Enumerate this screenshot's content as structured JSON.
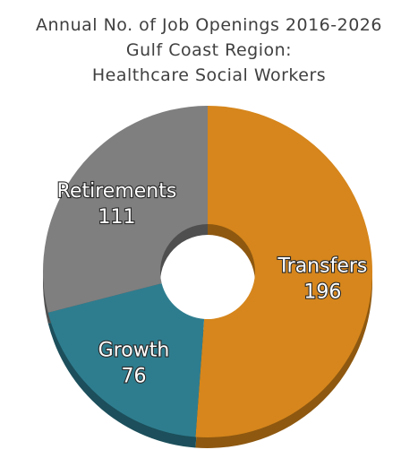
{
  "chart_data": {
    "type": "pie",
    "title_lines": [
      "Annual No. of Job Openings 2016-2026",
      "Gulf Coast Region:",
      "Healthcare Social Workers"
    ],
    "categories": [
      "Transfers",
      "Growth",
      "Retirements"
    ],
    "values": [
      196,
      76,
      111
    ],
    "colors": [
      "#D6861C",
      "#2E7D8F",
      "#7F7F7F"
    ],
    "side_colors": [
      "#8E5810",
      "#1C4F5B",
      "#4F4F4F"
    ],
    "donut": true,
    "legend": "none"
  }
}
